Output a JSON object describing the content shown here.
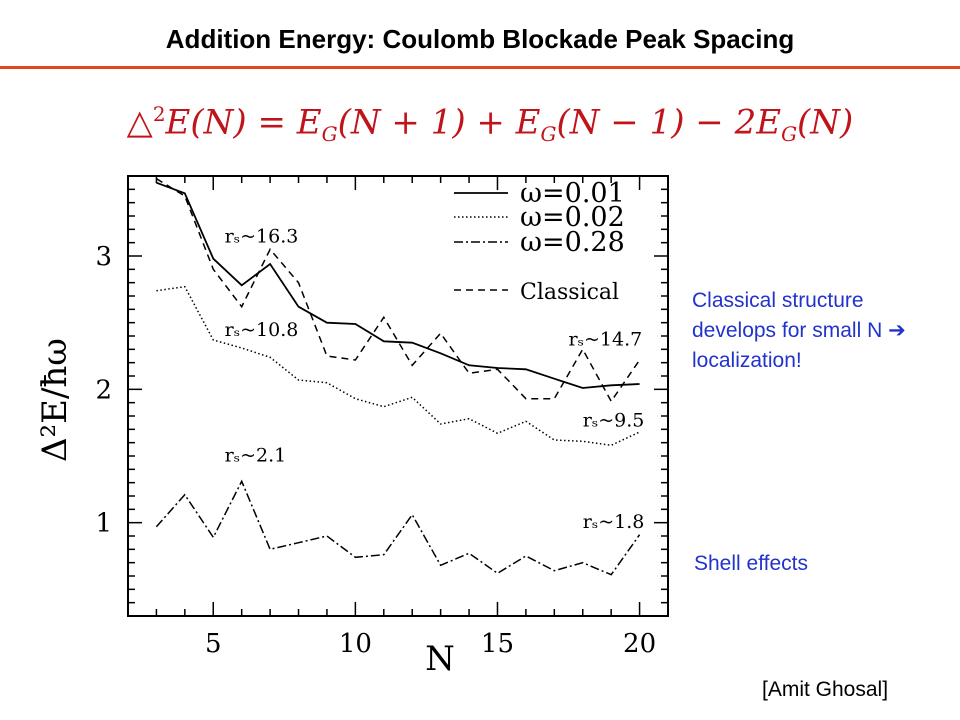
{
  "title": "Addition Energy: Coulomb Blockade Peak Spacing",
  "formula": {
    "delta": "△",
    "sq": "2",
    "lhs": "E(N) = E",
    "g": "G",
    "t1": "(N + 1) + E",
    "t2": "(N − 1) − 2E",
    "t3": "(N)"
  },
  "notes": {
    "classical": "Classical structure develops for small N ➔ localization!",
    "shell": "Shell effects",
    "credit": "[Amit Ghosal]"
  },
  "chart_data": {
    "type": "line",
    "xlabel": "N",
    "ylabel": "Δ²E/ħω",
    "xlim": [
      2,
      21
    ],
    "ylim": [
      0.3,
      3.6
    ],
    "x_ticks": [
      "5",
      "10",
      "15",
      "20"
    ],
    "y_ticks": [
      "1",
      "2",
      "3"
    ],
    "legend_position": "top-right",
    "series": [
      {
        "name": "ω=0.01",
        "style": "solid",
        "x": [
          3,
          4,
          5,
          6,
          7,
          8,
          9,
          10,
          11,
          12,
          13,
          14,
          15,
          16,
          17,
          18,
          19,
          20
        ],
        "y": [
          3.55,
          3.47,
          2.98,
          2.78,
          2.94,
          2.62,
          2.5,
          2.49,
          2.36,
          2.35,
          2.27,
          2.18,
          2.16,
          2.15,
          2.08,
          2.01,
          2.03,
          2.04
        ]
      },
      {
        "name": "ω=0.02",
        "style": "dotted",
        "x": [
          3,
          4,
          5,
          6,
          7,
          8,
          9,
          10,
          11,
          12,
          13,
          14,
          15,
          16,
          17,
          18,
          19,
          20
        ],
        "y": [
          2.74,
          2.77,
          2.37,
          2.31,
          2.24,
          2.07,
          2.05,
          1.93,
          1.87,
          1.94,
          1.74,
          1.78,
          1.67,
          1.76,
          1.62,
          1.61,
          1.58,
          1.68
        ]
      },
      {
        "name": "ω=0.28",
        "style": "dashdot",
        "x": [
          3,
          4,
          5,
          6,
          7,
          8,
          9,
          10,
          11,
          12,
          13,
          14,
          15,
          16,
          17,
          18,
          19,
          20
        ],
        "y": [
          0.97,
          1.21,
          0.89,
          1.31,
          0.8,
          0.85,
          0.9,
          0.74,
          0.76,
          1.06,
          0.68,
          0.77,
          0.62,
          0.75,
          0.64,
          0.7,
          0.61,
          0.91
        ]
      },
      {
        "name": "Classical",
        "style": "dashed",
        "x": [
          3,
          4,
          5,
          6,
          7,
          8,
          9,
          10,
          11,
          12,
          13,
          14,
          15,
          16,
          17,
          18,
          19,
          20
        ],
        "y": [
          3.58,
          3.45,
          2.9,
          2.62,
          3.05,
          2.8,
          2.25,
          2.22,
          2.54,
          2.18,
          2.42,
          2.12,
          2.15,
          1.93,
          1.93,
          2.3,
          1.91,
          2.22
        ]
      }
    ],
    "annotations": [
      {
        "text": "rₛ~16.3",
        "x": 5.4,
        "y": 3.1
      },
      {
        "text": "rₛ~10.8",
        "x": 5.4,
        "y": 2.4
      },
      {
        "text": "rₛ~2.1",
        "x": 5.4,
        "y": 1.46
      },
      {
        "text": "rₛ~14.7",
        "x": 17.5,
        "y": 2.33
      },
      {
        "text": "rₛ~9.5",
        "x": 18.0,
        "y": 1.72
      },
      {
        "text": "rₛ~1.8",
        "x": 18.0,
        "y": 0.96
      }
    ]
  }
}
